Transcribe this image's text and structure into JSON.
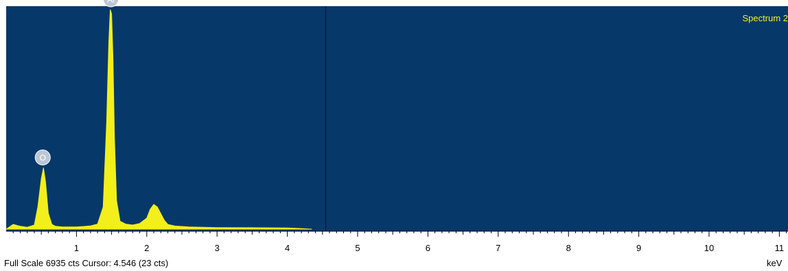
{
  "colors": {
    "plot_background": "#07386A",
    "spectrum_fill": "#F2EF1B",
    "legend_text": "#F2EF1B",
    "cursor_line": "#0B1420",
    "marker_fill": "#BCC6D4",
    "axis": "#000000"
  },
  "chart_data": {
    "type": "area",
    "title": "Spectrum 2",
    "xlabel": "keV",
    "ylabel": "",
    "xlim": [
      0,
      11.2
    ],
    "ylim": [
      0,
      6935
    ],
    "x_ticks": [
      1,
      2,
      3,
      4,
      5,
      6,
      7,
      8,
      9,
      10,
      11
    ],
    "x_tick_labels": [
      "1",
      "2",
      "3",
      "4",
      "5",
      "6",
      "7",
      "8",
      "9",
      "10",
      "11"
    ],
    "minor_tick_step": 0.1,
    "grid": false,
    "legend_position": "top-right",
    "cursor_kev": 4.546,
    "series": [
      {
        "name": "Spectrum 2",
        "x": [
          0.0,
          0.1,
          0.2,
          0.3,
          0.4,
          0.45,
          0.5,
          0.53,
          0.56,
          0.6,
          0.65,
          0.7,
          0.8,
          0.9,
          1.0,
          1.1,
          1.2,
          1.3,
          1.38,
          1.43,
          1.46,
          1.48,
          1.5,
          1.52,
          1.54,
          1.57,
          1.62,
          1.7,
          1.8,
          1.9,
          2.0,
          2.05,
          2.1,
          2.15,
          2.2,
          2.25,
          2.3,
          2.4,
          2.6,
          3.0,
          3.5,
          4.0,
          4.2,
          4.35
        ],
        "y": [
          0,
          150,
          90,
          60,
          130,
          700,
          1600,
          1940,
          1500,
          500,
          150,
          90,
          70,
          70,
          70,
          85,
          105,
          160,
          700,
          3400,
          5900,
          6935,
          6800,
          5400,
          2900,
          900,
          250,
          160,
          130,
          180,
          350,
          630,
          780,
          700,
          490,
          280,
          150,
          100,
          70,
          50,
          45,
          40,
          20,
          0
        ]
      }
    ],
    "peak_labels": [
      {
        "label": "O",
        "x_kev": 0.52,
        "counts": 1940
      },
      {
        "label": "Al",
        "x_kev": 1.49,
        "counts": 6935
      }
    ]
  },
  "footer": {
    "full_scale_text": "Full Scale 6935 cts Cursor: 4.546  (23 cts)",
    "unit_label": "keV"
  }
}
